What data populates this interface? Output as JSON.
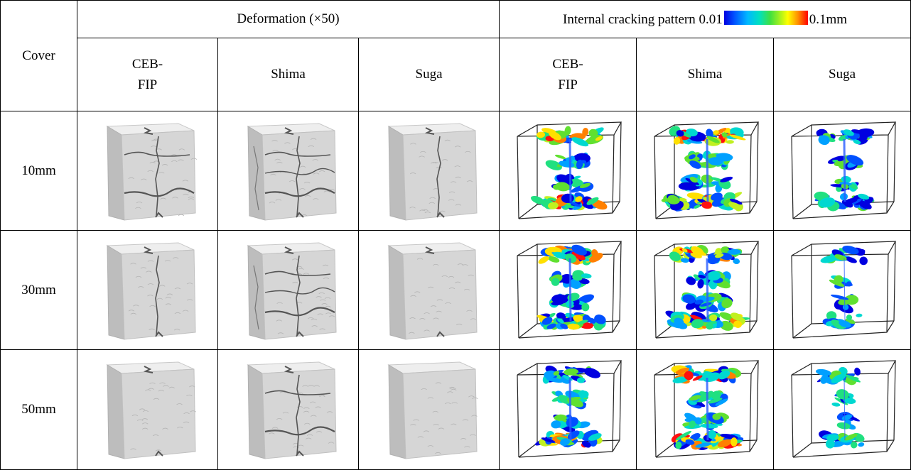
{
  "header": {
    "cover_label": "Cover",
    "deformation_title": "Deformation (×50)",
    "cracking_title_left": "Internal cracking pattern 0.01",
    "cracking_title_right": "0.1mm",
    "models": [
      {
        "line1": "CEB-",
        "line2": "FIP"
      },
      {
        "line1": "Shima",
        "line2": ""
      },
      {
        "line1": "Suga",
        "line2": ""
      }
    ]
  },
  "rows": [
    {
      "cover": "10mm"
    },
    {
      "cover": "30mm"
    },
    {
      "cover": "50mm"
    }
  ],
  "colors": {
    "scale_low": "#0000e0",
    "scale_mid": "#40e040",
    "scale_high": "#ff0000",
    "cube_face": "#d6d6d6"
  }
}
